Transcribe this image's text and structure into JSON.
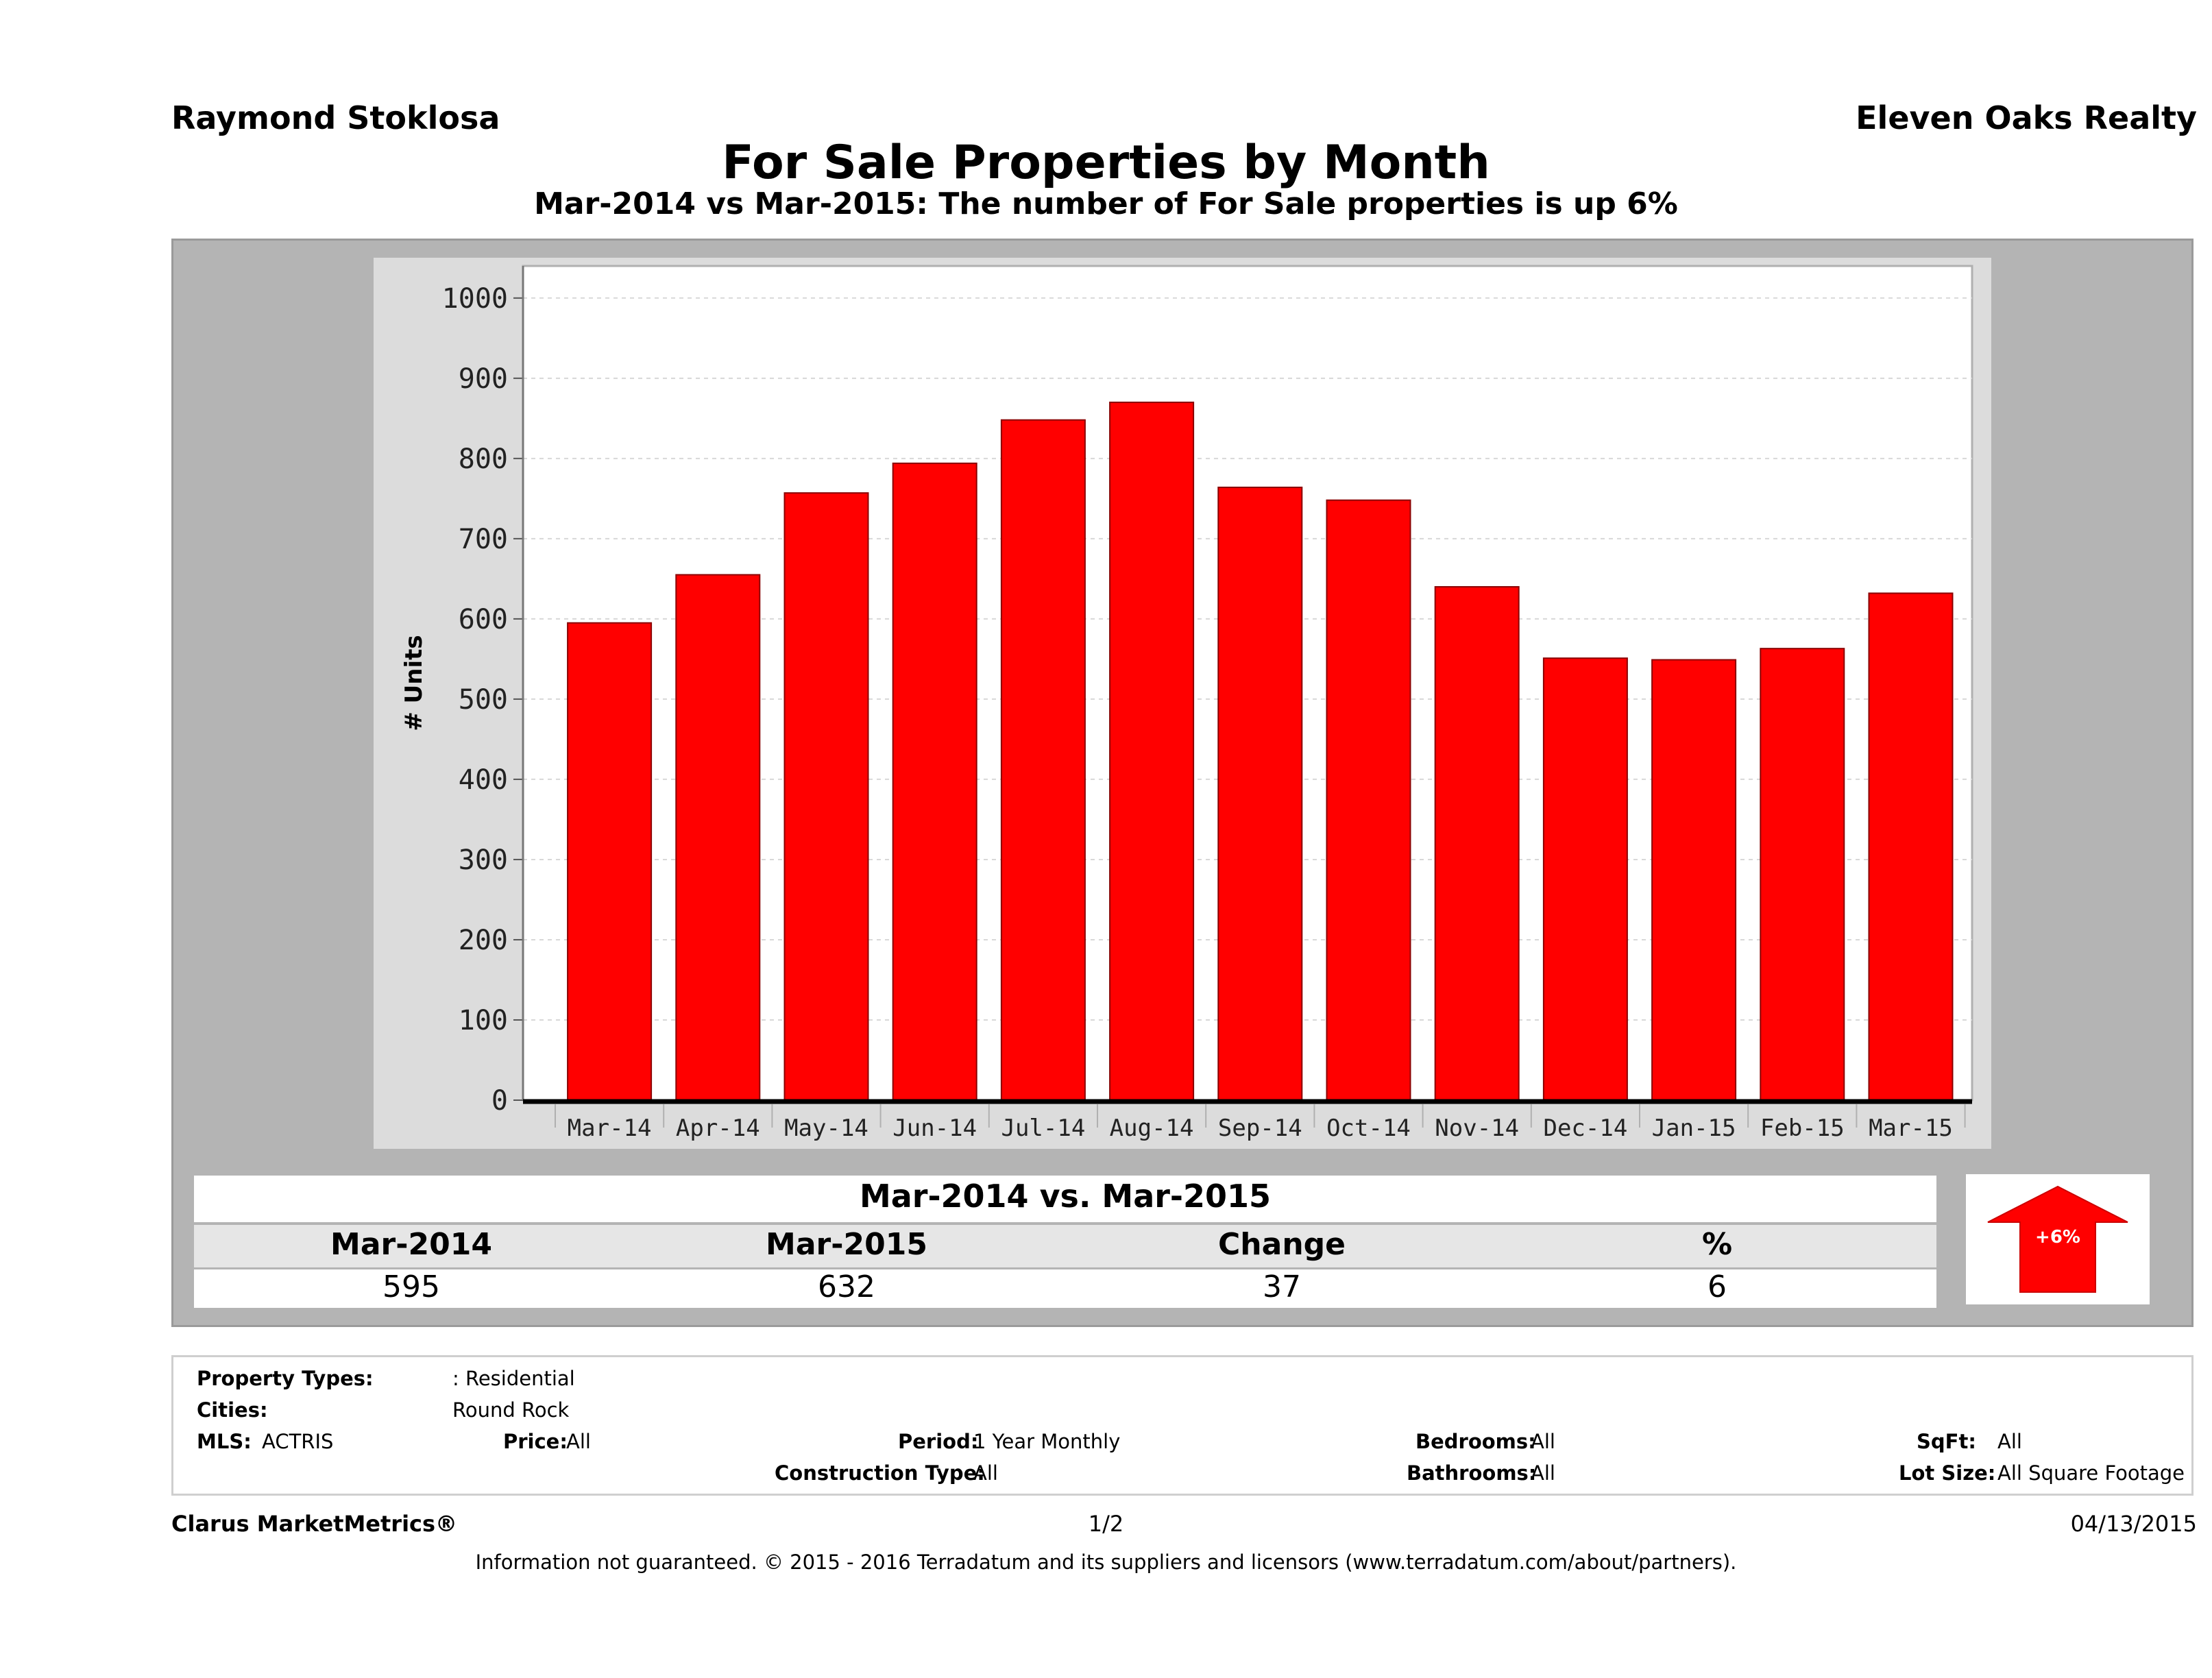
{
  "header": {
    "agent_name": "Raymond Stoklosa",
    "company_name": "Eleven Oaks Realty",
    "title": "For Sale Properties by Month",
    "subtitle": "Mar-2014 vs Mar-2015: The number of For Sale  properties is up 6%"
  },
  "chart_data": {
    "type": "bar",
    "categories": [
      "Mar-14",
      "Apr-14",
      "May-14",
      "Jun-14",
      "Jul-14",
      "Aug-14",
      "Sep-14",
      "Oct-14",
      "Nov-14",
      "Dec-14",
      "Jan-15",
      "Feb-15",
      "Mar-15"
    ],
    "values": [
      595,
      655,
      757,
      794,
      848,
      870,
      764,
      748,
      640,
      551,
      549,
      563,
      632
    ],
    "ylabel": "# Units",
    "ylim": [
      0,
      1040
    ],
    "yticks": [
      0,
      100,
      200,
      300,
      400,
      500,
      600,
      700,
      800,
      900,
      1000
    ],
    "bar_color": "#ff0000",
    "grid": true,
    "legend": "none"
  },
  "comparison": {
    "title": "Mar-2014 vs. Mar-2015",
    "headers": [
      "Mar-2014",
      "Mar-2015",
      "Change",
      "%"
    ],
    "values": [
      "595",
      "632",
      "37",
      "6"
    ],
    "badge": "+6%",
    "badge_color": "#ff0000"
  },
  "info": {
    "property_types_label": "Property Types:",
    "property_types_value": ": Residential",
    "cities_label": "Cities:",
    "cities_value": "Round Rock",
    "mls_label": "MLS:",
    "mls_value": "ACTRIS",
    "price_label": "Price:",
    "price_value": "All",
    "period_label": "Period:",
    "period_value": "1 Year Monthly",
    "construction_label": "Construction Type:",
    "construction_value": "All",
    "bedrooms_label": "Bedrooms:",
    "bedrooms_value": "All",
    "bathrooms_label": "Bathrooms:",
    "bathrooms_value": "All",
    "sqft_label": "SqFt:",
    "sqft_value": "All",
    "lot_label": "Lot Size:",
    "lot_value": "All Square Footage"
  },
  "footer": {
    "brand": "Clarus MarketMetrics®",
    "page": "1/2",
    "date": "04/13/2015",
    "disclaimer": "Information not guaranteed. © 2015 - 2016 Terradatum and its suppliers and licensors (www.terradatum.com/about/partners)."
  }
}
